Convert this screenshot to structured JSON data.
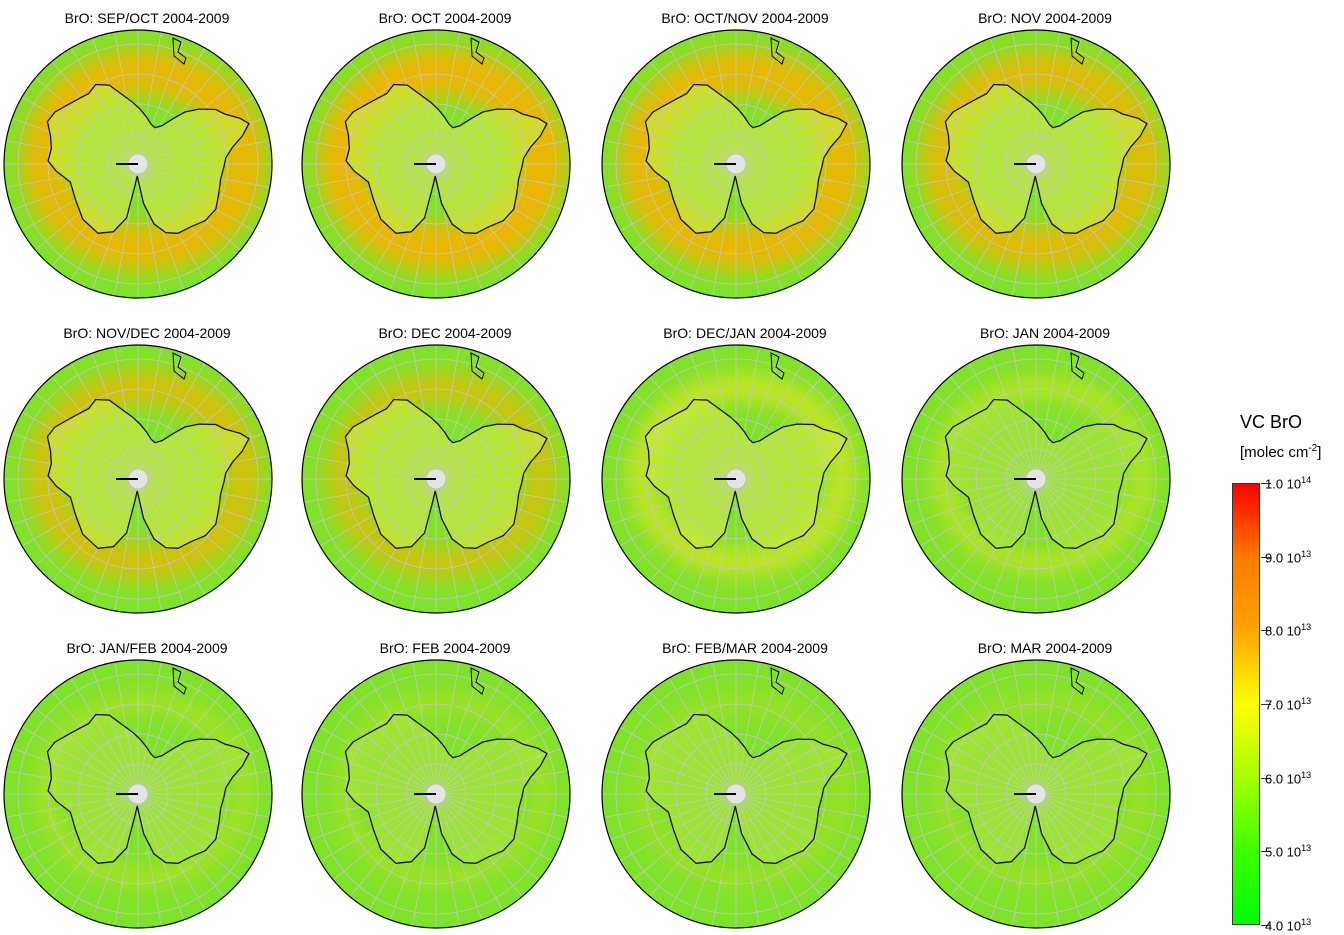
{
  "panels": [
    {
      "title": "BrO: SEP/OCT 2004-2009",
      "intensity": 0.95
    },
    {
      "title": "BrO: OCT 2004-2009",
      "intensity": 1.0
    },
    {
      "title": "BrO: OCT/NOV 2004-2009",
      "intensity": 0.95
    },
    {
      "title": "BrO: NOV 2004-2009",
      "intensity": 0.85
    },
    {
      "title": "BrO: NOV/DEC 2004-2009",
      "intensity": 0.7
    },
    {
      "title": "BrO: DEC 2004-2009",
      "intensity": 0.6
    },
    {
      "title": "BrO: DEC/JAN 2004-2009",
      "intensity": 0.5
    },
    {
      "title": "BrO: JAN 2004-2009",
      "intensity": 0.35
    },
    {
      "title": "BrO: JAN/FEB 2004-2009",
      "intensity": 0.22
    },
    {
      "title": "BrO: FEB 2004-2009",
      "intensity": 0.18
    },
    {
      "title": "BrO: FEB/MAR 2004-2009",
      "intensity": 0.15
    },
    {
      "title": "BrO: MAR 2004-2009",
      "intensity": 0.15
    }
  ],
  "legend": {
    "title": "VC BrO",
    "unit_base": "[molec cm",
    "unit_exp": "-2",
    "unit_close": "]",
    "ticks": [
      {
        "mantissa": "1.0 10",
        "exp": "14",
        "value": 100
      },
      {
        "mantissa": "9.0 10",
        "exp": "13",
        "value": 90
      },
      {
        "mantissa": "8.0 10",
        "exp": "13",
        "value": 80
      },
      {
        "mantissa": "7.0 10",
        "exp": "13",
        "value": 70
      },
      {
        "mantissa": "6.0 10",
        "exp": "13",
        "value": 60
      },
      {
        "mantissa": "5.0 10",
        "exp": "13",
        "value": 50
      },
      {
        "mantissa": "4.0 10",
        "exp": "13",
        "value": 40
      }
    ],
    "colors": [
      "#ff0000",
      "#ff7a00",
      "#ffa500",
      "#ffff00",
      "#a8ff00",
      "#3cff00",
      "#00ff00"
    ]
  },
  "map_colors": {
    "ocean": "#7fe22a",
    "enhanced": "#f2b400",
    "enhanced_edge": "#f5e620",
    "coast": "#111111",
    "grid": "#c8c8c8"
  }
}
